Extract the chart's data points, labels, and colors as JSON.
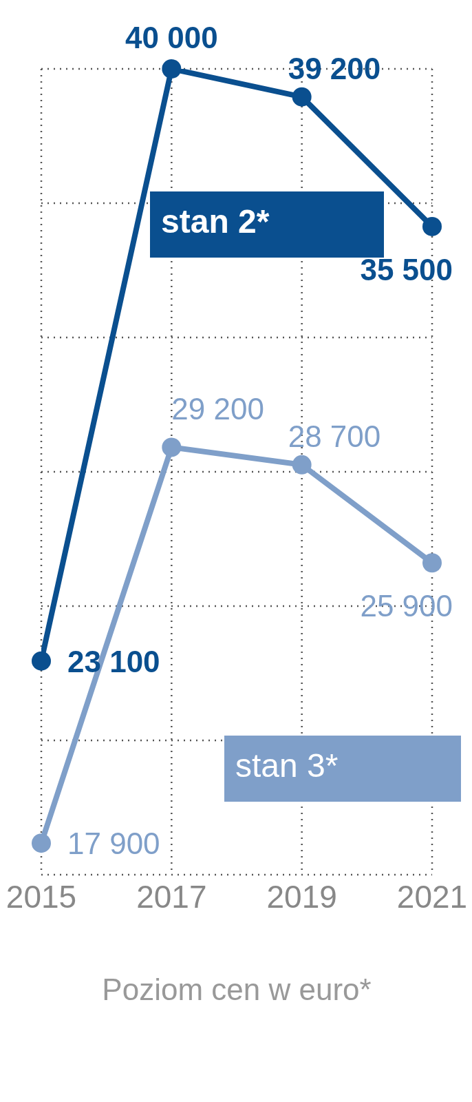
{
  "chart_data": {
    "type": "line",
    "xlabel": "Poziom cen w euro*",
    "categories": [
      "2015",
      "2017",
      "2019",
      "2021"
    ],
    "series": [
      {
        "name": "stan 2*",
        "color": "#0a4f8f",
        "values": [
          23100,
          40000,
          39200,
          35500
        ],
        "value_labels": [
          "23 100",
          "40 000",
          "39 200",
          "35 500"
        ]
      },
      {
        "name": "stan 3*",
        "color": "#7f9fc9",
        "values": [
          17900,
          29200,
          28700,
          25900
        ],
        "value_labels": [
          "17 900",
          "29 200",
          "28 700",
          "25 900"
        ]
      }
    ],
    "ylim": [
      17000,
      40000
    ],
    "yticks": [
      {
        "value": 17000,
        "label": null
      },
      {
        "value": 20833,
        "label": null
      },
      {
        "value": 24667,
        "label": null
      },
      {
        "value": 28500,
        "label": null
      },
      {
        "value": 32333,
        "label": null
      },
      {
        "value": 36167,
        "label": null
      },
      {
        "value": 40000,
        "label": null
      }
    ],
    "tick_labels": "x",
    "grid": true,
    "marker": "circle",
    "line_style": "solid",
    "legend": false
  }
}
